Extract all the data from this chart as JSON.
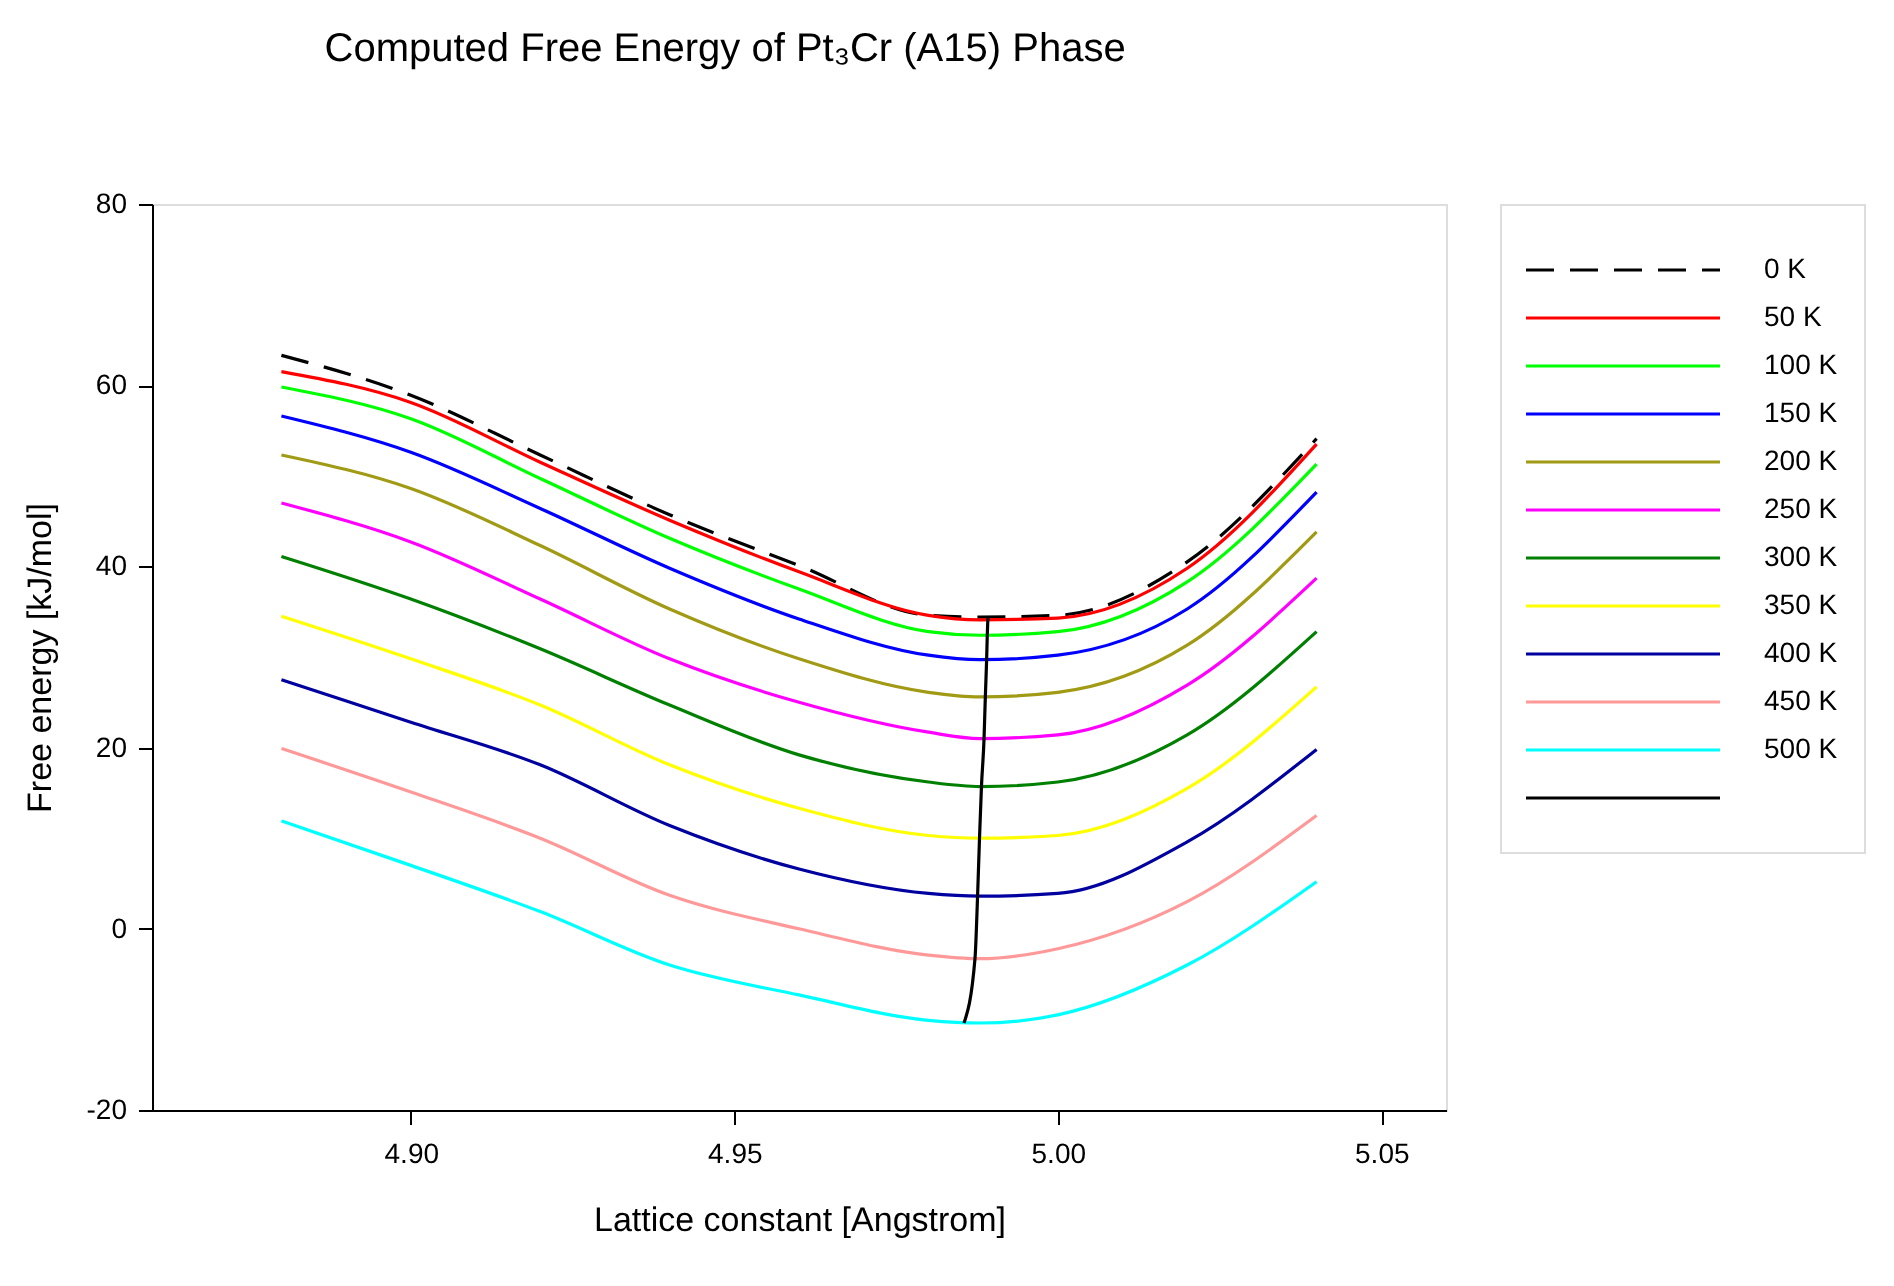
{
  "chart_data": {
    "type": "line",
    "title": "Computed Free Energy of Pt₃Cr (A15) Phase",
    "xlabel": "Lattice constant [Angstrom]",
    "ylabel": "Free energy [kJ/mol]",
    "x": [
      4.88,
      4.9,
      4.92,
      4.94,
      4.96,
      4.98,
      4.988,
      5.0,
      5.02,
      5.04
    ],
    "xlim": [
      4.86,
      5.06
    ],
    "xticks": [
      {
        "value": 4.9,
        "label": "4.90"
      },
      {
        "value": 4.95,
        "label": "4.95"
      },
      {
        "value": 5.0,
        "label": "5.00"
      },
      {
        "value": 5.05,
        "label": "5.05"
      }
    ],
    "ylim": [
      -20,
      80
    ],
    "yticks": [
      -20,
      0,
      20,
      40,
      60,
      80
    ],
    "grid": false,
    "legend": "right",
    "marker": "none",
    "series": [
      {
        "name": "0 K",
        "color": "#000000",
        "line_style": "dashed",
        "values": [
          63.3,
          58.9,
          52.3,
          45.7,
          40.1,
          34.6,
          34.4,
          34.6,
          40.5,
          54.1
        ]
      },
      {
        "name": "50 K",
        "color": "#ff0000",
        "values": [
          61.5,
          58.1,
          51.5,
          45.1,
          39.4,
          34.6,
          34.1,
          34.3,
          39.8,
          53.5
        ]
      },
      {
        "name": "100 K",
        "color": "#00ff00",
        "values": [
          59.8,
          56.3,
          49.7,
          43.1,
          37.5,
          32.8,
          32.4,
          32.8,
          38.3,
          51.3
        ]
      },
      {
        "name": "150 K",
        "color": "#0000ff",
        "values": [
          56.6,
          52.6,
          46.4,
          39.8,
          34.2,
          30.2,
          29.7,
          30.2,
          35.3,
          48.2
        ]
      },
      {
        "name": "200 K",
        "color": "#a09a14",
        "values": [
          52.3,
          48.6,
          42.3,
          35.3,
          29.8,
          26.1,
          25.6,
          26.1,
          31.3,
          43.8
        ]
      },
      {
        "name": "250 K",
        "color": "#ff00ff",
        "values": [
          47.0,
          42.7,
          36.4,
          29.8,
          25.0,
          21.7,
          21.0,
          21.4,
          26.9,
          38.7
        ]
      },
      {
        "name": "300 K",
        "color": "#008000",
        "values": [
          41.1,
          36.4,
          30.9,
          24.7,
          19.2,
          16.2,
          15.7,
          16.2,
          21.4,
          32.8
        ]
      },
      {
        "name": "350 K",
        "color": "#ffff00",
        "values": [
          34.5,
          29.8,
          24.7,
          18.1,
          13.3,
          10.3,
          10.0,
          10.3,
          15.5,
          26.7
        ]
      },
      {
        "name": "400 K",
        "color": "#0000a0",
        "values": [
          27.5,
          22.8,
          18.1,
          11.4,
          6.6,
          3.9,
          3.6,
          3.9,
          9.6,
          19.8
        ]
      },
      {
        "name": "450 K",
        "color": "#ff9999",
        "values": [
          19.9,
          15.1,
          10.0,
          3.7,
          0.0,
          -2.9,
          -3.3,
          -2.2,
          3.0,
          12.5
        ]
      },
      {
        "name": "500 K",
        "color": "#00ffff",
        "values": [
          11.9,
          7.0,
          1.9,
          -4.0,
          -7.3,
          -10.1,
          -10.4,
          -9.5,
          -4.0,
          5.2
        ]
      },
      {
        "name": null,
        "color": "#000000",
        "x": [
          4.9892,
          4.9891,
          4.989,
          4.9888,
          4.9886,
          4.9882,
          4.9879,
          4.9876,
          4.9872,
          4.9855
        ],
        "values": [
          34.4,
          32.4,
          29.7,
          25.6,
          21.0,
          15.7,
          10.0,
          3.6,
          -3.3,
          -10.4
        ]
      }
    ]
  }
}
